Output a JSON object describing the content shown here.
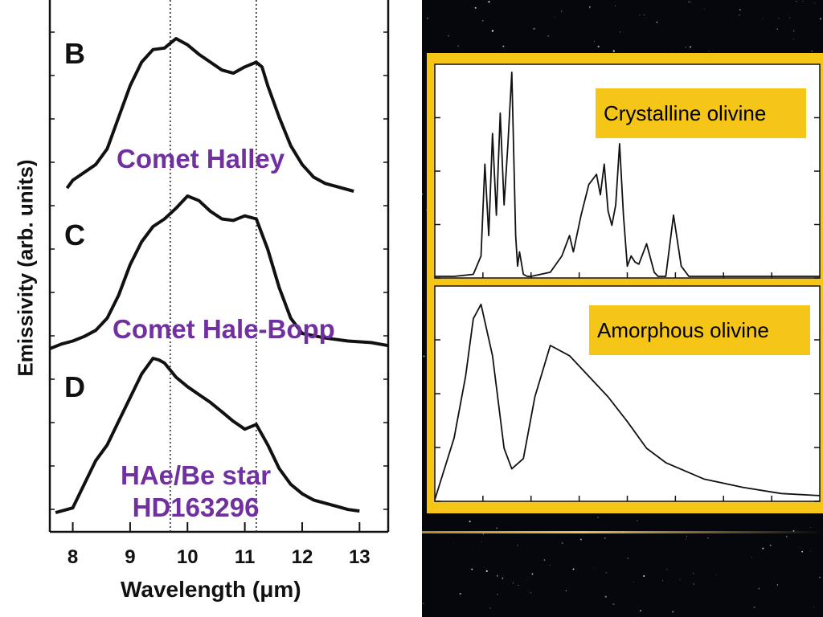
{
  "chart_data": [
    {
      "type": "line",
      "xlabel": "Wavelength (μm)",
      "ylabel": "Emissivity (arb. units)",
      "xlim": [
        7.6,
        13.5
      ],
      "x_ticks": [
        "8",
        "9",
        "10",
        "11",
        "12",
        "13"
      ],
      "reference_lines_x": [
        9.7,
        11.2
      ],
      "series": [
        {
          "panel": "B",
          "name": "Comet Halley",
          "x": [
            7.9,
            8.0,
            8.2,
            8.4,
            8.6,
            8.8,
            9.0,
            9.2,
            9.4,
            9.6,
            9.7,
            9.8,
            9.9,
            10.0,
            10.2,
            10.4,
            10.6,
            10.8,
            11.0,
            11.2,
            11.3,
            11.4,
            11.6,
            11.8,
            12.0,
            12.2,
            12.4,
            12.6,
            12.9
          ],
          "y": [
            0.05,
            0.1,
            0.15,
            0.2,
            0.3,
            0.5,
            0.7,
            0.85,
            0.93,
            0.94,
            0.97,
            1.0,
            0.98,
            0.96,
            0.9,
            0.85,
            0.8,
            0.78,
            0.82,
            0.85,
            0.82,
            0.7,
            0.5,
            0.32,
            0.2,
            0.12,
            0.08,
            0.06,
            0.03
          ]
        },
        {
          "panel": "C",
          "name": "Comet Hale-Bopp",
          "x": [
            7.6,
            7.8,
            8.0,
            8.2,
            8.4,
            8.6,
            8.8,
            9.0,
            9.2,
            9.4,
            9.6,
            9.8,
            10.0,
            10.2,
            10.4,
            10.6,
            10.8,
            11.0,
            11.2,
            11.4,
            11.6,
            11.8,
            12.0,
            12.4,
            12.8,
            13.2,
            13.5
          ],
          "y": [
            0.0,
            0.03,
            0.05,
            0.08,
            0.12,
            0.2,
            0.35,
            0.55,
            0.7,
            0.8,
            0.85,
            0.92,
            1.0,
            0.97,
            0.9,
            0.85,
            0.84,
            0.87,
            0.85,
            0.65,
            0.4,
            0.2,
            0.1,
            0.07,
            0.05,
            0.04,
            0.02
          ]
        },
        {
          "panel": "D",
          "name": "HAe/Be star HD163296",
          "x": [
            7.7,
            8.0,
            8.2,
            8.4,
            8.6,
            8.8,
            9.0,
            9.2,
            9.4,
            9.5,
            9.6,
            9.8,
            10.0,
            10.2,
            10.4,
            10.6,
            10.8,
            11.0,
            11.2,
            11.4,
            11.6,
            11.8,
            12.0,
            12.2,
            12.4,
            12.6,
            12.8,
            13.0
          ],
          "y": [
            0.02,
            0.05,
            0.2,
            0.35,
            0.45,
            0.6,
            0.75,
            0.9,
            1.0,
            0.99,
            0.97,
            0.88,
            0.82,
            0.77,
            0.72,
            0.66,
            0.6,
            0.55,
            0.58,
            0.45,
            0.3,
            0.2,
            0.14,
            0.1,
            0.08,
            0.06,
            0.04,
            0.03
          ]
        }
      ]
    },
    {
      "type": "line",
      "name": "Crystalline olivine",
      "x": [
        0.0,
        0.05,
        0.1,
        0.12,
        0.13,
        0.14,
        0.15,
        0.16,
        0.17,
        0.18,
        0.19,
        0.2,
        0.21,
        0.215,
        0.22,
        0.23,
        0.24,
        0.25,
        0.3,
        0.33,
        0.35,
        0.36,
        0.38,
        0.4,
        0.42,
        0.43,
        0.44,
        0.45,
        0.46,
        0.47,
        0.48,
        0.49,
        0.5,
        0.51,
        0.52,
        0.53,
        0.55,
        0.57,
        0.58,
        0.6,
        0.62,
        0.64,
        0.66,
        0.68,
        0.7,
        1.0
      ],
      "y": [
        0.0,
        0.0,
        0.01,
        0.1,
        0.55,
        0.2,
        0.7,
        0.3,
        0.8,
        0.35,
        0.65,
        1.0,
        0.2,
        0.05,
        0.12,
        0.01,
        0.0,
        0.0,
        0.02,
        0.1,
        0.2,
        0.12,
        0.3,
        0.45,
        0.5,
        0.4,
        0.55,
        0.32,
        0.25,
        0.35,
        0.65,
        0.3,
        0.05,
        0.1,
        0.07,
        0.06,
        0.16,
        0.02,
        0.0,
        0.0,
        0.3,
        0.05,
        0.0,
        0.0,
        0.0,
        0.0
      ]
    },
    {
      "type": "line",
      "name": "Amorphous olivine",
      "x": [
        0.0,
        0.05,
        0.08,
        0.1,
        0.12,
        0.15,
        0.18,
        0.2,
        0.23,
        0.26,
        0.3,
        0.35,
        0.4,
        0.45,
        0.5,
        0.55,
        0.6,
        0.7,
        0.8,
        0.9,
        1.0
      ],
      "y": [
        0.0,
        0.3,
        0.6,
        0.88,
        0.95,
        0.7,
        0.25,
        0.15,
        0.2,
        0.5,
        0.75,
        0.7,
        0.6,
        0.5,
        0.38,
        0.25,
        0.18,
        0.1,
        0.06,
        0.03,
        0.02
      ]
    }
  ],
  "labels": {
    "panel_b": "B",
    "panel_c": "C",
    "panel_d": "D",
    "halley": "Comet Halley",
    "halebopp": "Comet Hale-Bopp",
    "hae_line1": "HAe/Be star",
    "hae_line2": "HD163296",
    "crystalline": "Crystalline olivine",
    "amorphous": "Amorphous olivine"
  },
  "colors": {
    "label_purple": "#7030a0",
    "frame_gold": "#f5c518",
    "curve": "#111111"
  }
}
